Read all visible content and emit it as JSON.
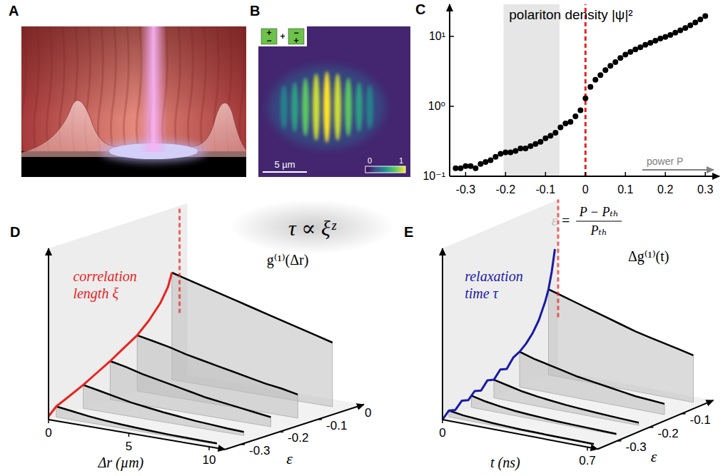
{
  "center_text": "τ ∝ ξᶻ",
  "panel_a": {
    "letter": "A"
  },
  "panel_b": {
    "letter": "B",
    "inset_signs": [
      "+",
      "−",
      "+",
      "−",
      "+"
    ],
    "scale_bar": "5 µm",
    "colorbar_range": [
      0,
      1
    ],
    "colorbar_ticks": [
      0,
      1
    ]
  },
  "chart_data": [
    {
      "type": "scatter",
      "letter": "C",
      "title": "polariton density |ψ|²",
      "x_label": {
        "lhs": "ε =",
        "numerator": "P − Pₜₕ",
        "denominator": "Pₜₕ"
      },
      "x": [
        -0.325,
        -0.3125,
        -0.3,
        -0.2875,
        -0.275,
        -0.2625,
        -0.25,
        -0.2375,
        -0.225,
        -0.2125,
        -0.2,
        -0.1875,
        -0.175,
        -0.1625,
        -0.15,
        -0.1375,
        -0.125,
        -0.1125,
        -0.1,
        -0.0875,
        -0.075,
        -0.0625,
        -0.05,
        -0.0375,
        -0.025,
        -0.0125,
        0,
        0.0125,
        0.025,
        0.0375,
        0.05,
        0.0625,
        0.075,
        0.0875,
        0.1,
        0.1125,
        0.125,
        0.1375,
        0.15,
        0.1625,
        0.175,
        0.1875,
        0.2,
        0.2125,
        0.225,
        0.2375,
        0.25,
        0.2625,
        0.275,
        0.2875,
        0.3
      ],
      "values": [
        0.13,
        0.13,
        0.14,
        0.14,
        0.13,
        0.15,
        0.16,
        0.17,
        0.19,
        0.21,
        0.22,
        0.22,
        0.23,
        0.25,
        0.25,
        0.27,
        0.29,
        0.31,
        0.35,
        0.38,
        0.42,
        0.5,
        0.57,
        0.6,
        0.72,
        0.88,
        1.3,
        1.9,
        2.4,
        2.8,
        3.3,
        3.8,
        4.3,
        4.9,
        5.5,
        6.0,
        6.5,
        7.0,
        7.6,
        8.1,
        8.7,
        9.3,
        9.8,
        10.5,
        11.3,
        12.2,
        13.2,
        14.4,
        15.8,
        17.5,
        19.5
      ],
      "color": "#000000",
      "marker": "circle",
      "log": "y",
      "xlim": [
        -0.34,
        0.33
      ],
      "ylim": [
        0.1,
        25
      ],
      "xticks": [
        -0.3,
        -0.2,
        -0.1,
        0,
        0.1,
        0.2,
        0.3
      ],
      "yticks": [
        {
          "value": 0.1,
          "label": "10⁻¹"
        },
        {
          "value": 1,
          "label": "10⁰"
        },
        {
          "value": 10,
          "label": "10¹"
        }
      ],
      "annotations": [
        {
          "type": "vline",
          "x": 0,
          "color": "#e8231f",
          "line_style": "dashed"
        },
        {
          "type": "band",
          "x": [
            -0.205,
            -0.065
          ],
          "color": "#e6e6e6"
        },
        {
          "type": "arrow",
          "text": "power P",
          "color": "#808080"
        }
      ]
    },
    {
      "type": "waterfall",
      "letter": "D",
      "x_label": "Δr (µm)",
      "depth_label": "ε",
      "curves_label": "g⁽¹⁾(Δr)",
      "xlim": [
        0,
        11
      ],
      "xticks": [
        0,
        5,
        10
      ],
      "depth_lim": [
        -0.34,
        0.02
      ],
      "depth_ticks": [
        -0.3,
        -0.2,
        -0.1,
        0
      ],
      "zlim": [
        0,
        1.6
      ],
      "color": "#000000",
      "x": [
        0,
        1,
        2,
        3,
        4,
        5,
        6,
        7,
        8,
        9,
        10
      ],
      "series": [
        {
          "depth": -0.32,
          "values": [
            0.1,
            0.08,
            0.06,
            0.045,
            0.035,
            0.027,
            0.02,
            0.015,
            0.012,
            0.01,
            0.008
          ]
        },
        {
          "depth": -0.25,
          "values": [
            0.22,
            0.19,
            0.16,
            0.13,
            0.11,
            0.09,
            0.075,
            0.06,
            0.05,
            0.04,
            0.033
          ]
        },
        {
          "depth": -0.18,
          "values": [
            0.36,
            0.33,
            0.29,
            0.26,
            0.23,
            0.2,
            0.17,
            0.15,
            0.13,
            0.11,
            0.09
          ]
        },
        {
          "depth": -0.11,
          "values": [
            0.52,
            0.49,
            0.46,
            0.42,
            0.39,
            0.36,
            0.33,
            0.3,
            0.27,
            0.25,
            0.22
          ]
        },
        {
          "depth": -0.02,
          "values": [
            1.0,
            0.96,
            0.92,
            0.88,
            0.84,
            0.8,
            0.76,
            0.72,
            0.68,
            0.64,
            0.6
          ]
        }
      ],
      "trace": {
        "name": "correlation length ξ",
        "color": "#e8231f",
        "depth": [
          -0.34,
          -0.32,
          -0.29,
          -0.25,
          -0.22,
          -0.18,
          -0.15,
          -0.11,
          -0.08,
          -0.05,
          -0.03,
          -0.02
        ],
        "values": [
          0.03,
          0.1,
          0.15,
          0.22,
          0.28,
          0.36,
          0.43,
          0.52,
          0.62,
          0.75,
          0.88,
          1.0
        ]
      },
      "threshold": {
        "depth": 0,
        "z": [
          0.6,
          1.6
        ],
        "color": "#e8231f",
        "line_style": "dashed"
      }
    },
    {
      "type": "waterfall",
      "letter": "E",
      "x_label": "t (ns)",
      "depth_label": "ε",
      "curves_label": "Δg⁽¹⁾(t)",
      "xlim": [
        0,
        0.75
      ],
      "xticks": [
        0,
        0.7
      ],
      "depth_lim": [
        -0.36,
        0
      ],
      "depth_ticks": [
        -0.3,
        -0.2,
        -0.1
      ],
      "zlim": [
        0,
        1.6
      ],
      "color": "#000000",
      "x": [
        0,
        0.07,
        0.14,
        0.21,
        0.28,
        0.35,
        0.42,
        0.49,
        0.56,
        0.63,
        0.7
      ],
      "series": [
        {
          "depth": -0.34,
          "values": [
            0.06,
            0.04,
            0.03,
            0.02,
            0.015,
            0.01,
            0.008,
            0.006,
            0.005,
            0.004,
            0.003
          ]
        },
        {
          "depth": -0.27,
          "values": [
            0.11,
            0.08,
            0.06,
            0.045,
            0.035,
            0.028,
            0.022,
            0.018,
            0.015,
            0.012,
            0.01
          ]
        },
        {
          "depth": -0.2,
          "values": [
            0.17,
            0.14,
            0.11,
            0.09,
            0.075,
            0.062,
            0.052,
            0.044,
            0.037,
            0.031,
            0.026
          ]
        },
        {
          "depth": -0.12,
          "values": [
            0.33,
            0.29,
            0.26,
            0.23,
            0.2,
            0.18,
            0.16,
            0.14,
            0.12,
            0.11,
            0.1
          ]
        },
        {
          "depth": -0.03,
          "values": [
            0.8,
            0.76,
            0.72,
            0.68,
            0.64,
            0.6,
            0.56,
            0.53,
            0.5,
            0.47,
            0.44
          ]
        }
      ],
      "trace": {
        "name": "relaxation time τ",
        "color": "#1a1aa8",
        "depth": [
          -0.36,
          -0.34,
          -0.32,
          -0.3,
          -0.28,
          -0.26,
          -0.24,
          -0.22,
          -0.2,
          -0.18,
          -0.16,
          -0.14,
          -0.12,
          -0.1,
          -0.08,
          -0.06,
          -0.04,
          -0.03,
          -0.02,
          -0.01
        ],
        "values": [
          0.0,
          0.06,
          0.04,
          0.1,
          0.08,
          0.14,
          0.12,
          0.19,
          0.17,
          0.24,
          0.22,
          0.3,
          0.33,
          0.38,
          0.45,
          0.55,
          0.7,
          0.8,
          0.95,
          1.15
        ]
      },
      "threshold": {
        "depth": 0,
        "z": [
          0.5,
          1.6
        ],
        "color": "#e8231f",
        "line_style": "dashed"
      }
    }
  ]
}
